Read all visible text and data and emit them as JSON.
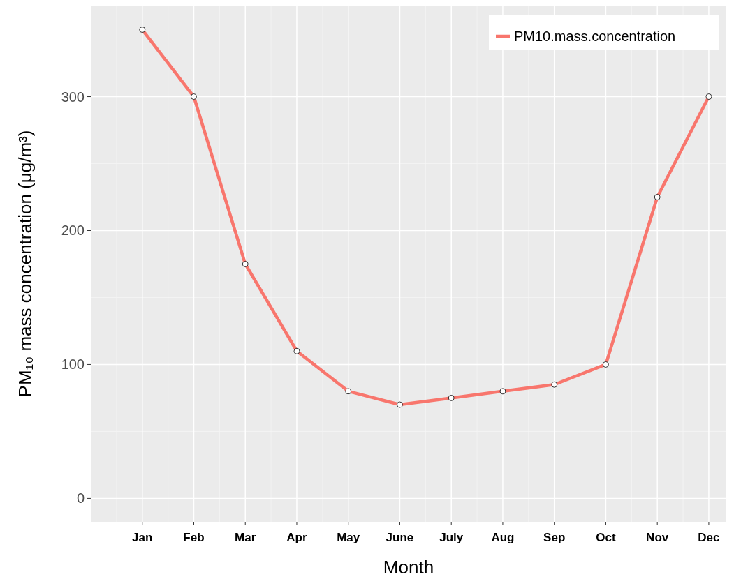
{
  "chart_data": {
    "type": "line",
    "xlabel": "Month",
    "ylabel": "PM₁₀ mass concentration  (μg/m³)",
    "categories": [
      "Jan",
      "Feb",
      "Mar",
      "Apr",
      "May",
      "June",
      "July",
      "Aug",
      "Sep",
      "Oct",
      "Nov",
      "Dec"
    ],
    "series": [
      {
        "name": "PM10.mass.concentration",
        "color": "#f8766d",
        "values": [
          350,
          300,
          175,
          110,
          80,
          70,
          75,
          80,
          85,
          100,
          225,
          300
        ]
      }
    ],
    "ylim": [
      -17.5,
      368
    ],
    "yticks": [
      0,
      100,
      200,
      300
    ],
    "grid": true,
    "legend": "top right",
    "marker": "circle",
    "line_style": "solid"
  }
}
